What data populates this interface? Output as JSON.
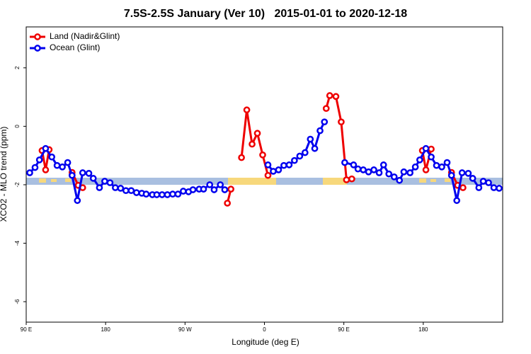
{
  "chart_data": {
    "type": "line",
    "title": "7.5S-2.5S January (Ver 10)   2015-01-01 to 2020-12-18",
    "xlabel": "Longitude (deg E)",
    "ylabel": "XCO2 - MLO trend (ppm)",
    "xlim": [
      90,
      630
    ],
    "ylim": [
      -6.7,
      3.4
    ],
    "xticks": [
      {
        "value": 90,
        "label": "90 E"
      },
      180,
      {
        "value": 270,
        "label": "90 W"
      },
      {
        "value": 360,
        "label": "0"
      },
      {
        "value": 450,
        "label": "90 E"
      },
      {
        "value": 540,
        "label": "180"
      }
    ],
    "yticks": [
      -6,
      -4,
      -2,
      0,
      2
    ],
    "legend": "top-left",
    "series": [
      {
        "name": "Land (Nadir&Glint)",
        "color": "#ee0000",
        "x": [
          108,
          112,
          116,
          null,
          142,
          149,
          154,
          null,
          318,
          322,
          null,
          334,
          340,
          346,
          352,
          358,
          364,
          null,
          430,
          434,
          441,
          447,
          453,
          459,
          null,
          539,
          543,
          549,
          null,
          572,
          579,
          585
        ],
        "values": [
          -0.83,
          -1.49,
          -0.8,
          null,
          -1.58,
          -2.02,
          -2.1,
          null,
          -2.63,
          -2.15,
          null,
          -1.07,
          0.56,
          -0.61,
          -0.24,
          -0.98,
          -1.68,
          null,
          0.61,
          1.05,
          1.02,
          0.15,
          -1.83,
          -1.8,
          null,
          -0.83,
          -1.49,
          -0.78,
          null,
          -1.58,
          -2.02,
          -2.1
        ]
      },
      {
        "name": "Ocean (Glint)",
        "color": "#0000ee",
        "x": [
          94,
          100,
          105,
          112,
          119,
          125,
          131,
          137,
          142,
          148,
          154,
          161,
          166,
          173,
          179,
          185,
          191,
          197,
          203,
          209,
          215,
          221,
          226,
          233,
          238,
          244,
          250,
          256,
          262,
          268,
          274,
          279,
          286,
          291,
          298,
          303,
          310,
          315,
          null,
          364,
          370,
          376,
          382,
          388,
          394,
          400,
          406,
          412,
          417,
          423,
          428,
          null,
          451,
          461,
          466,
          472,
          478,
          484,
          490,
          495,
          501,
          507,
          513,
          518,
          525,
          531,
          536,
          543,
          549,
          555,
          561,
          567,
          572,
          578,
          584,
          591,
          596,
          603,
          608,
          614,
          620,
          626
        ],
        "values": [
          -1.59,
          -1.41,
          -1.15,
          -0.76,
          -1.05,
          -1.34,
          -1.39,
          -1.24,
          -1.68,
          -2.54,
          -1.59,
          -1.61,
          -1.78,
          -2.1,
          -1.88,
          -1.93,
          -2.1,
          -2.12,
          -2.2,
          -2.2,
          -2.27,
          -2.29,
          -2.32,
          -2.34,
          -2.34,
          -2.34,
          -2.34,
          -2.32,
          -2.32,
          -2.22,
          -2.24,
          -2.17,
          -2.15,
          -2.15,
          -2.0,
          -2.17,
          -2.0,
          -2.17,
          null,
          -1.32,
          -1.54,
          -1.49,
          -1.34,
          -1.32,
          -1.17,
          -1.02,
          -0.9,
          -0.44,
          -0.76,
          -0.15,
          0.15,
          null,
          -1.24,
          -1.32,
          -1.46,
          -1.49,
          -1.56,
          -1.49,
          -1.59,
          -1.32,
          -1.63,
          -1.73,
          -1.85,
          -1.56,
          -1.59,
          -1.39,
          -1.15,
          -0.76,
          -1.05,
          -1.34,
          -1.39,
          -1.24,
          -1.68,
          -2.54,
          -1.59,
          -1.61,
          -1.78,
          -2.1,
          -1.88,
          -1.93,
          -2.1,
          -2.12
        ]
      }
    ]
  }
}
